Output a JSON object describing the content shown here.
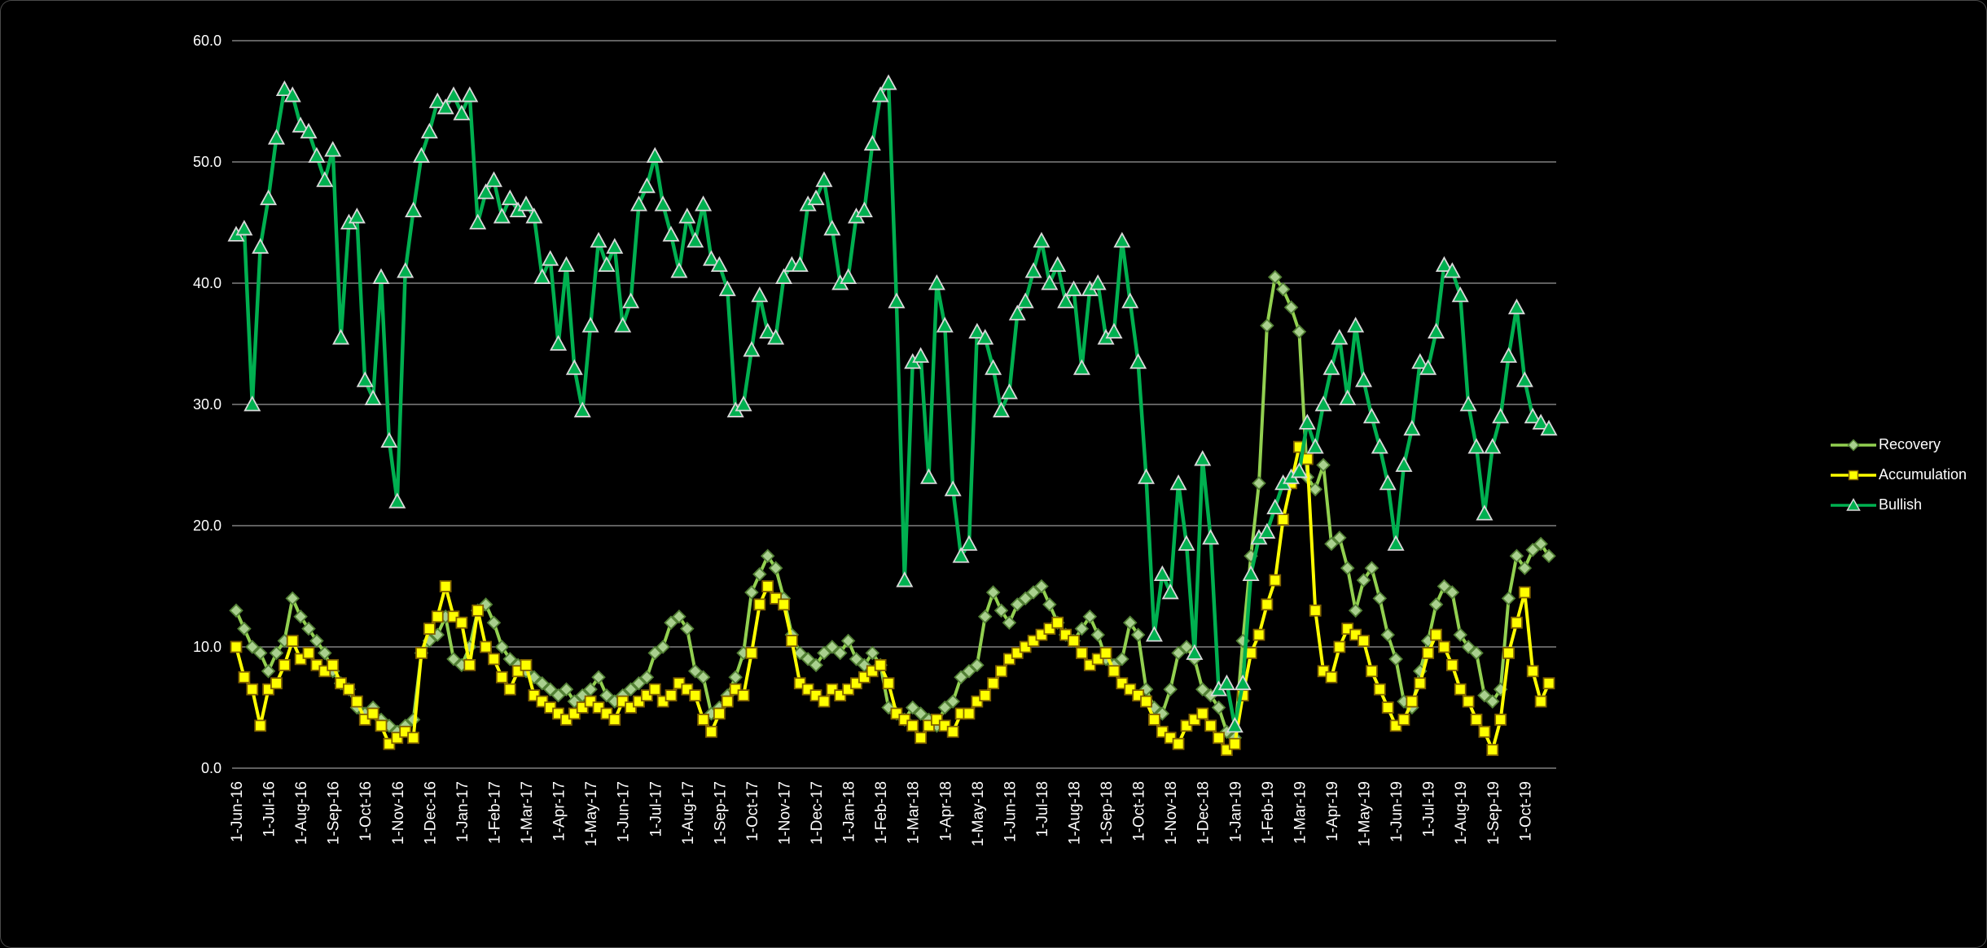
{
  "window": {
    "background": "#000000"
  },
  "chart_data": {
    "type": "line",
    "title": "",
    "xlabel": "",
    "ylabel": "",
    "grid": {
      "show": true,
      "color": "#BFBFBF"
    },
    "text_color": "#FFFFFF",
    "legend_position": "right",
    "y_axis": {
      "range": [
        0,
        60
      ],
      "ticks": [
        0,
        10,
        20,
        30,
        40,
        50,
        60
      ],
      "tick_labels": [
        "0.0",
        "10.0",
        "20.0",
        "30.0",
        "40.0",
        "50.0",
        "60.0"
      ]
    },
    "x_axis": {
      "points_per_tick": 4,
      "tick_labels": [
        "1-Jun-16",
        "1-Jul-16",
        "1-Aug-16",
        "1-Sep-16",
        "1-Oct-16",
        "1-Nov-16",
        "1-Dec-16",
        "1-Jan-17",
        "1-Feb-17",
        "1-Mar-17",
        "1-Apr-17",
        "1-May-17",
        "1-Jun-17",
        "1-Jul-17",
        "1-Aug-17",
        "1-Sep-17",
        "1-Oct-17",
        "1-Nov-17",
        "1-Dec-17",
        "1-Jan-18",
        "1-Feb-18",
        "1-Mar-18",
        "1-Apr-18",
        "1-May-18",
        "1-Jun-18",
        "1-Jul-18",
        "1-Aug-18",
        "1-Sep-18",
        "1-Oct-18",
        "1-Nov-18",
        "1-Dec-18",
        "1-Jan-19",
        "1-Feb-19",
        "1-Mar-19",
        "1-Apr-19",
        "1-May-19",
        "1-Jun-19",
        "1-Jul-19",
        "1-Aug-19",
        "1-Sep-19",
        "1-Oct-19"
      ]
    },
    "series": [
      {
        "name": "Recovery",
        "marker": "diamond",
        "color": "#92D050",
        "marker_fill": "#A9D08E",
        "marker_stroke": "#538135",
        "values": [
          13,
          11.5,
          10,
          9.5,
          8,
          9.5,
          10.5,
          14,
          12.5,
          11.5,
          10.5,
          9.5,
          8,
          7,
          6.5,
          5,
          4.5,
          5,
          4,
          3.5,
          3,
          3.5,
          4,
          9.5,
          10.5,
          11,
          12.5,
          9,
          8.5,
          10,
          13,
          13.5,
          12,
          10,
          9,
          8.5,
          8,
          7.5,
          7,
          6.5,
          6,
          6.5,
          5.5,
          6,
          6.5,
          7.5,
          6,
          5.5,
          6,
          6.5,
          7,
          7.5,
          9.5,
          10,
          12,
          12.5,
          11.5,
          8,
          7.5,
          4.5,
          5,
          6,
          7.5,
          9.5,
          14.5,
          16,
          17.5,
          16.5,
          14,
          11,
          9.5,
          9,
          8.5,
          9.5,
          10,
          9.5,
          10.5,
          9,
          8.5,
          9.5,
          8.5,
          5,
          4.5,
          4,
          5,
          4.5,
          4,
          3.5,
          5,
          5.5,
          7.5,
          8,
          8.5,
          12.5,
          14.5,
          13,
          12,
          13.5,
          14,
          14.5,
          15,
          13.5,
          12,
          11,
          10.5,
          11.5,
          12.5,
          11,
          9,
          8.5,
          9,
          12,
          11,
          6.5,
          5,
          4.5,
          6.5,
          9.5,
          10,
          9,
          6.5,
          6,
          5,
          3,
          2.5,
          10.5,
          17.5,
          23.5,
          36.5,
          40.5,
          39.5,
          38,
          36,
          24,
          23,
          25,
          18.5,
          19,
          16.5,
          13,
          15.5,
          16.5,
          14,
          11,
          9,
          5.5,
          5,
          8,
          10.5,
          13.5,
          15,
          14.5,
          11,
          10,
          9.5,
          6,
          5.5,
          6.5,
          14,
          17.5,
          16.5,
          18,
          18.5,
          17.5
        ]
      },
      {
        "name": "Accumulation",
        "marker": "square",
        "color": "#FFFF00",
        "marker_fill": "#FFFF00",
        "marker_stroke": "#7F6000",
        "values": [
          10,
          7.5,
          6.5,
          3.5,
          6.5,
          7,
          8.5,
          10.5,
          9,
          9.5,
          8.5,
          8,
          8.5,
          7,
          6.5,
          5.5,
          4,
          4.5,
          3.5,
          2,
          2.5,
          3,
          2.5,
          9.5,
          11.5,
          12.5,
          15,
          12.5,
          12,
          8.5,
          13,
          10,
          9,
          7.5,
          6.5,
          8,
          8.5,
          6,
          5.5,
          5,
          4.5,
          4,
          4.5,
          5,
          5.5,
          5,
          4.5,
          4,
          5.5,
          5,
          5.5,
          6,
          6.5,
          5.5,
          6,
          7,
          6.5,
          6,
          4,
          3,
          4.5,
          5.5,
          6.5,
          6,
          9.5,
          13.5,
          15,
          14,
          13.5,
          10.5,
          7,
          6.5,
          6,
          5.5,
          6.5,
          6,
          6.5,
          7,
          7.5,
          8,
          8.5,
          7,
          4.5,
          4,
          3.5,
          2.5,
          3.5,
          4,
          3.5,
          3,
          4.5,
          4.5,
          5.5,
          6,
          7,
          8,
          9,
          9.5,
          10,
          10.5,
          11,
          11.5,
          12,
          11,
          10.5,
          9.5,
          8.5,
          9,
          9.5,
          8,
          7,
          6.5,
          6,
          5.5,
          4,
          3,
          2.5,
          2,
          3.5,
          4,
          4.5,
          3.5,
          2.5,
          1.5,
          2,
          6,
          9.5,
          11,
          13.5,
          15.5,
          20.5,
          23.5,
          26.5,
          25.5,
          13,
          8,
          7.5,
          10,
          11.5,
          11,
          10.5,
          8,
          6.5,
          5,
          3.5,
          4,
          5.5,
          7,
          9.5,
          11,
          10,
          8.5,
          6.5,
          5.5,
          4,
          3,
          1.5,
          4,
          9.5,
          12,
          14.5,
          8,
          5.5,
          7
        ]
      },
      {
        "name": "Bullish",
        "marker": "triangle",
        "color": "#00B050",
        "marker_fill": "#00B050",
        "marker_stroke": "#D9D9D9",
        "values": [
          44,
          44.5,
          30,
          43,
          47,
          52,
          56,
          55.5,
          53,
          52.5,
          50.5,
          48.5,
          51,
          35.5,
          45,
          45.5,
          32,
          30.5,
          40.5,
          27,
          22,
          41,
          46,
          50.5,
          52.5,
          55,
          54.5,
          55.5,
          54,
          55.5,
          45,
          47.5,
          48.5,
          45.5,
          47,
          46,
          46.5,
          45.5,
          40.5,
          42,
          35,
          41.5,
          33,
          29.5,
          36.5,
          43.5,
          41.5,
          43,
          36.5,
          38.5,
          46.5,
          48,
          50.5,
          46.5,
          44,
          41,
          45.5,
          43.5,
          46.5,
          42,
          41.5,
          39.5,
          29.5,
          30,
          34.5,
          39,
          36,
          35.5,
          40.5,
          41.5,
          41.5,
          46.5,
          47,
          48.5,
          44.5,
          40,
          40.5,
          45.5,
          46,
          51.5,
          55.5,
          56.5,
          38.5,
          15.5,
          33.5,
          34,
          24,
          40,
          36.5,
          23,
          17.5,
          18.5,
          36,
          35.5,
          33,
          29.5,
          31,
          37.5,
          38.5,
          41,
          43.5,
          40,
          41.5,
          38.5,
          39.5,
          33,
          39.5,
          40,
          35.5,
          36,
          43.5,
          38.5,
          33.5,
          24,
          11,
          16,
          14.5,
          23.5,
          18.5,
          9.5,
          25.5,
          19,
          6.5,
          7,
          3.5,
          7,
          16,
          19,
          19.5,
          21.5,
          23.5,
          24,
          24.5,
          28.5,
          26.5,
          30,
          33,
          35.5,
          30.5,
          36.5,
          32,
          29,
          26.5,
          23.5,
          18.5,
          25,
          28,
          33.5,
          33,
          36,
          41.5,
          41,
          39,
          30,
          26.5,
          21,
          26.5,
          29,
          34,
          38,
          32,
          29,
          28.5,
          28
        ]
      }
    ]
  }
}
